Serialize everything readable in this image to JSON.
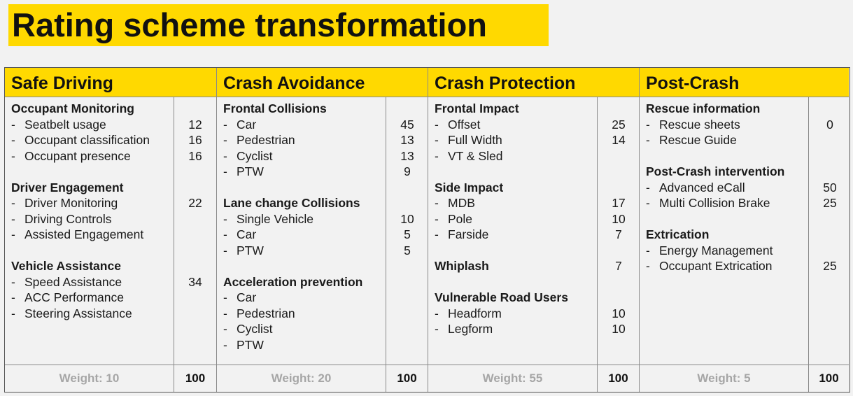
{
  "title": "Rating scheme transformation",
  "colors": {
    "accent": "#ffd900",
    "weight_text": "#a6a6a6"
  },
  "columns": [
    {
      "heading": "Safe Driving",
      "weight": "Weight: 10",
      "total": "100",
      "rows": [
        {
          "group": true,
          "text": "Occupant Monitoring",
          "value": ""
        },
        {
          "group": false,
          "text": "Seatbelt usage",
          "value": "12"
        },
        {
          "group": false,
          "text": "Occupant classification",
          "value": "16"
        },
        {
          "group": false,
          "text": "Occupant presence",
          "value": "16"
        },
        {
          "spacer": true
        },
        {
          "group": true,
          "text": "Driver Engagement",
          "value": ""
        },
        {
          "group": false,
          "text": "Driver Monitoring",
          "value": "22"
        },
        {
          "group": false,
          "text": "Driving Controls",
          "value": ""
        },
        {
          "group": false,
          "text": "Assisted Engagement",
          "value": ""
        },
        {
          "spacer": true
        },
        {
          "group": true,
          "text": "Vehicle Assistance",
          "value": ""
        },
        {
          "group": false,
          "text": "Speed Assistance",
          "value": "34"
        },
        {
          "group": false,
          "text": "ACC Performance",
          "value": ""
        },
        {
          "group": false,
          "text": "Steering Assistance",
          "value": ""
        }
      ]
    },
    {
      "heading": "Crash Avoidance",
      "weight": "Weight: 20",
      "total": "100",
      "rows": [
        {
          "group": true,
          "text": "Frontal Collisions",
          "value": ""
        },
        {
          "group": false,
          "text": "Car",
          "value": "45"
        },
        {
          "group": false,
          "text": "Pedestrian",
          "value": "13"
        },
        {
          "group": false,
          "text": "Cyclist",
          "value": "13"
        },
        {
          "group": false,
          "text": "PTW",
          "value": "9"
        },
        {
          "spacer": true
        },
        {
          "group": true,
          "text": "Lane change Collisions",
          "value": ""
        },
        {
          "group": false,
          "text": "Single Vehicle",
          "value": "10"
        },
        {
          "group": false,
          "text": "Car",
          "value": "5"
        },
        {
          "group": false,
          "text": "PTW",
          "value": "5"
        },
        {
          "spacer": true
        },
        {
          "group": true,
          "text": "Acceleration prevention",
          "value": ""
        },
        {
          "group": false,
          "text": "Car",
          "value": ""
        },
        {
          "group": false,
          "text": "Pedestrian",
          "value": ""
        },
        {
          "group": false,
          "text": "Cyclist",
          "value": ""
        },
        {
          "group": false,
          "text": "PTW",
          "value": ""
        }
      ]
    },
    {
      "heading": "Crash Protection",
      "weight": "Weight: 55",
      "total": "100",
      "rows": [
        {
          "group": true,
          "text": "Frontal Impact",
          "value": ""
        },
        {
          "group": false,
          "text": "Offset",
          "value": "25"
        },
        {
          "group": false,
          "text": "Full Width",
          "value": "14"
        },
        {
          "group": false,
          "text": "VT & Sled",
          "value": ""
        },
        {
          "spacer": true
        },
        {
          "group": true,
          "text": "Side Impact",
          "value": ""
        },
        {
          "group": false,
          "text": "MDB",
          "value": "17"
        },
        {
          "group": false,
          "text": "Pole",
          "value": "10"
        },
        {
          "group": false,
          "text": "Farside",
          "value": "7"
        },
        {
          "spacer": true
        },
        {
          "group": true,
          "text": "Whiplash",
          "value": "7"
        },
        {
          "spacer": true
        },
        {
          "group": true,
          "text": "Vulnerable Road Users",
          "value": ""
        },
        {
          "group": false,
          "text": "Headform",
          "value": "10"
        },
        {
          "group": false,
          "text": "Legform",
          "value": "10"
        }
      ]
    },
    {
      "heading": "Post-Crash",
      "weight": "Weight: 5",
      "total": "100",
      "rows": [
        {
          "group": true,
          "text": "Rescue information",
          "value": ""
        },
        {
          "group": false,
          "text": "Rescue sheets",
          "value": "0"
        },
        {
          "group": false,
          "text": "Rescue Guide",
          "value": ""
        },
        {
          "spacer": true
        },
        {
          "group": true,
          "text": "Post-Crash intervention",
          "value": ""
        },
        {
          "group": false,
          "text": "Advanced eCall",
          "value": "50"
        },
        {
          "group": false,
          "text": "Multi Collision Brake",
          "value": "25"
        },
        {
          "spacer": true
        },
        {
          "group": true,
          "text": "Extrication",
          "value": ""
        },
        {
          "group": false,
          "text": "Energy Management",
          "value": ""
        },
        {
          "group": false,
          "text": "Occupant Extrication",
          "value": "25"
        }
      ]
    }
  ]
}
